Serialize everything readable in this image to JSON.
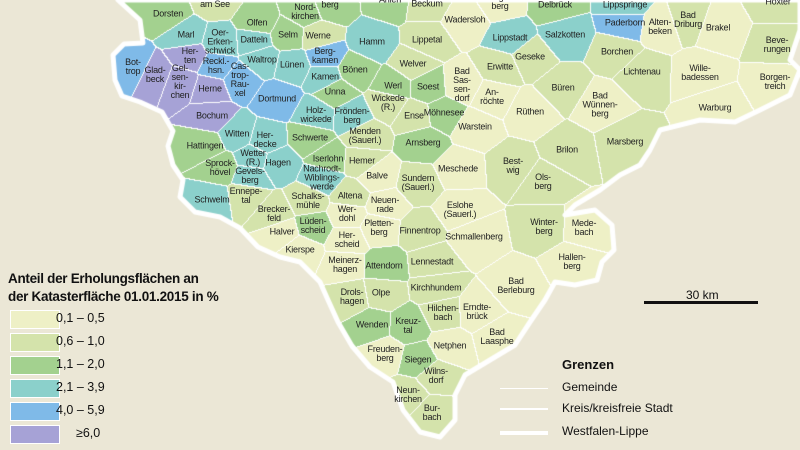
{
  "legend": {
    "title_line1": "Anteil der Erholungsflächen an",
    "title_line2": "der Katasterfläche 01.01.2015 in %",
    "classes": [
      {
        "label": "0,1 – 0,5",
        "color": "#EEF0C6"
      },
      {
        "label": "0,6 – 1,0",
        "color": "#D4E3AB"
      },
      {
        "label": "1,1 – 2,0",
        "color": "#A3D18F"
      },
      {
        "label": "2,1 – 3,9",
        "color": "#8BD0CB"
      },
      {
        "label": "4,0 – 5,9",
        "color": "#7FBAE8"
      },
      {
        "label": "≥6,0",
        "color": "#A6A2D6"
      }
    ]
  },
  "scale": {
    "label": "30 km"
  },
  "borders": {
    "title": "Grenzen",
    "items": [
      "Gemeinde",
      "Kreis/kreisfreie Stadt",
      "Westfalen-Lippe"
    ]
  },
  "colors": {
    "background": "#EBE7D6",
    "border": "#FFFFFF"
  },
  "municipalities": [
    {
      "name": "Dorsten",
      "class": 2
    },
    {
      "name": "Haltern\nam See",
      "class": 1
    },
    {
      "name": "Nord-\nkirchen",
      "class": 2
    },
    {
      "name": "berg",
      "class": 2
    },
    {
      "name": "Olfen",
      "class": 2
    },
    {
      "name": "Selm",
      "class": 2
    },
    {
      "name": "Werne",
      "class": 1
    },
    {
      "name": "Marl",
      "class": 3
    },
    {
      "name": "Oer-\nErken-\nschwick",
      "class": 3
    },
    {
      "name": "Datteln",
      "class": 3
    },
    {
      "name": "Waltrop",
      "class": 3
    },
    {
      "name": "Reckl.-\nhsn.",
      "class": 4
    },
    {
      "name": "Cas-\ntrop-\nRau-\nxel",
      "class": 4
    },
    {
      "name": "Her-\nten",
      "class": 5
    },
    {
      "name": "Bot-\ntrop",
      "class": 4
    },
    {
      "name": "Glad-\nbeck",
      "class": 5
    },
    {
      "name": "Gel-\nsen-\nkir-\nchen",
      "class": 5
    },
    {
      "name": "Herne",
      "class": 5
    },
    {
      "name": "Bochum",
      "class": 5
    },
    {
      "name": "Dortmund",
      "class": 4
    },
    {
      "name": "Lünen",
      "class": 3
    },
    {
      "name": "Berg-\nkamen",
      "class": 4
    },
    {
      "name": "Kamen",
      "class": 3
    },
    {
      "name": "Unna",
      "class": 2
    },
    {
      "name": "Holz-\nwickede",
      "class": 3
    },
    {
      "name": "Witten",
      "class": 3
    },
    {
      "name": "Her-\ndecke",
      "class": 3
    },
    {
      "name": "Schwerte",
      "class": 2
    },
    {
      "name": "Hamm",
      "class": 3
    },
    {
      "name": "Bönen",
      "class": 2
    },
    {
      "name": "Frönden-\nberg",
      "class": 3
    },
    {
      "name": "Werl",
      "class": 2
    },
    {
      "name": "Welver",
      "class": 1
    },
    {
      "name": "Lippetal",
      "class": 1
    },
    {
      "name": "Wadersloh",
      "class": 0
    },
    {
      "name": "Beckum",
      "class": 1
    },
    {
      "name": "Ahlen",
      "class": 2
    },
    {
      "name": "Langen-\nberg",
      "class": 0
    },
    {
      "name": "Delbrück",
      "class": 2
    },
    {
      "name": "Lippstadt",
      "class": 3
    },
    {
      "name": "Salzkotten",
      "class": 3
    },
    {
      "name": "Lippspringe",
      "class": 3
    },
    {
      "name": "Paderborn",
      "class": 4
    },
    {
      "name": "Alten-\nbeken",
      "class": 0
    },
    {
      "name": "Bad\nDriburg",
      "class": 1
    },
    {
      "name": "Brakel",
      "class": 0
    },
    {
      "name": "Höxter",
      "class": 1
    },
    {
      "name": "Beve-\nrungen",
      "class": 1
    },
    {
      "name": "Borgen-\ntreich",
      "class": 0
    },
    {
      "name": "Wille-\nbadessen",
      "class": 0
    },
    {
      "name": "Warburg",
      "class": 0
    },
    {
      "name": "Lichtenau",
      "class": 1
    },
    {
      "name": "Borchen",
      "class": 1
    },
    {
      "name": "Bad\nWünnen-\nberg",
      "class": 0
    },
    {
      "name": "Marsberg",
      "class": 1
    },
    {
      "name": "Geseke",
      "class": 1
    },
    {
      "name": "Büren",
      "class": 1
    },
    {
      "name": "Erwitte",
      "class": 1
    },
    {
      "name": "Bad\nSas-\nsen-\ndorf",
      "class": 0
    },
    {
      "name": "Soest",
      "class": 2
    },
    {
      "name": "An-\nröchte",
      "class": 0
    },
    {
      "name": "Rüthen",
      "class": 0
    },
    {
      "name": "Warstein",
      "class": 0
    },
    {
      "name": "Möhnesee",
      "class": 2
    },
    {
      "name": "Ense",
      "class": 1
    },
    {
      "name": "Wickede\n(R.)",
      "class": 1
    },
    {
      "name": "Menden\n(Sauerl.)",
      "class": 1
    },
    {
      "name": "Arnsberg",
      "class": 2
    },
    {
      "name": "Hemer",
      "class": 1
    },
    {
      "name": "Iserlohn",
      "class": 2
    },
    {
      "name": "Hagen",
      "class": 3
    },
    {
      "name": "Hattingen",
      "class": 2
    },
    {
      "name": "Sprock-\nhövel",
      "class": 2
    },
    {
      "name": "Wetter\n(R.)",
      "class": 3
    },
    {
      "name": "Gevels-\nberg",
      "class": 3
    },
    {
      "name": "Ennepe-\ntal",
      "class": 1
    },
    {
      "name": "Schwelm",
      "class": 3
    },
    {
      "name": "Brecker-\nfeld",
      "class": 1
    },
    {
      "name": "Nachrodt-\nWiblings-\nwerde",
      "class": 3
    },
    {
      "name": "Altena",
      "class": 1
    },
    {
      "name": "Schalks-\nmühle",
      "class": 1
    },
    {
      "name": "Balve",
      "class": 0
    },
    {
      "name": "Neuen-\nrade",
      "class": 0
    },
    {
      "name": "Sundern\n(Sauerl.)",
      "class": 1
    },
    {
      "name": "Wer-\ndohl",
      "class": 0
    },
    {
      "name": "Lüden-\nscheid",
      "class": 2
    },
    {
      "name": "Pletten-\nberg",
      "class": 0
    },
    {
      "name": "Her-\nscheid",
      "class": 0
    },
    {
      "name": "Halver",
      "class": 0
    },
    {
      "name": "Kierspe",
      "class": 0
    },
    {
      "name": "Finnentrop",
      "class": 1
    },
    {
      "name": "Meschede",
      "class": 0
    },
    {
      "name": "Best-\nwig",
      "class": 1
    },
    {
      "name": "Ols-\nberg",
      "class": 1
    },
    {
      "name": "Brilon",
      "class": 1
    },
    {
      "name": "Eslohe\n(Sauerl.)",
      "class": 0
    },
    {
      "name": "Schmallenberg",
      "class": 0
    },
    {
      "name": "Winter-\nberg",
      "class": 1
    },
    {
      "name": "Mede-\nbach",
      "class": 0
    },
    {
      "name": "Hallen-\nberg",
      "class": 0
    },
    {
      "name": "Meinerz-\nhagen",
      "class": 0
    },
    {
      "name": "Attendorn",
      "class": 2
    },
    {
      "name": "Lennestadt",
      "class": 1
    },
    {
      "name": "Drols-\nhagen",
      "class": 1
    },
    {
      "name": "Olpe",
      "class": 1
    },
    {
      "name": "Kirchhundem",
      "class": 1
    },
    {
      "name": "Bad\nBerleburg",
      "class": 0
    },
    {
      "name": "Wenden",
      "class": 2
    },
    {
      "name": "Kreuz-\ntal",
      "class": 2
    },
    {
      "name": "Hilchen-\nbach",
      "class": 1
    },
    {
      "name": "Erndte-\nbrück",
      "class": 0
    },
    {
      "name": "Bad\nLaasphe",
      "class": 0
    },
    {
      "name": "Netphen",
      "class": 0
    },
    {
      "name": "Freuden-\nberg",
      "class": 0
    },
    {
      "name": "Siegen",
      "class": 2
    },
    {
      "name": "Wilns-\ndorf",
      "class": 1
    },
    {
      "name": "Neun-\nkirchen",
      "class": 1
    },
    {
      "name": "Bur-\nbach",
      "class": 1
    }
  ]
}
